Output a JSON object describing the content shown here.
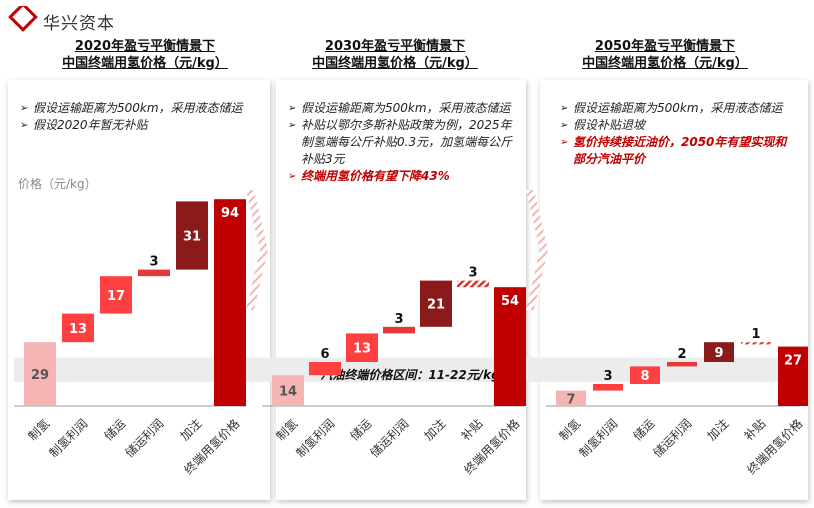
{
  "brand": {
    "name": "华兴资本",
    "color": "#c00000"
  },
  "colors": {
    "accent": "#c00000",
    "dark_red": "#8b1a1a",
    "bright_red": "#ff4040",
    "pink": "#f5b5b5",
    "band": "#ececec"
  },
  "panels": [
    {
      "title_line1": "2020年盈亏平衡情景下",
      "title_line2": "中国终端用氢价格（元/kg）",
      "bullets": [
        {
          "text": "假设运输距离为500km，采用液态储运",
          "highlight": false
        },
        {
          "text": "假设2020年暂无补贴",
          "highlight": false
        }
      ]
    },
    {
      "title_line1": "2030年盈亏平衡情景下",
      "title_line2": "中国终端用氢价格（元/kg）",
      "bullets": [
        {
          "text": "假设运输距离为500km，采用液态储运",
          "highlight": false
        },
        {
          "text": "补贴以鄂尔多斯补贴政策为例，2025年制氢端每公斤补贴0.3元，加氢端每公斤补贴3元",
          "highlight": false
        },
        {
          "text": "终端用氢价格有望下降43%",
          "highlight": true
        }
      ]
    },
    {
      "title_line1": "2050年盈亏平衡情景下",
      "title_line2": "中国终端用氢价格（元/kg）",
      "bullets": [
        {
          "text": "假设运输距离为500km，采用液态储运",
          "highlight": false
        },
        {
          "text": "假设补贴退坡",
          "highlight": false
        },
        {
          "text": "氢价持续接近油价，2050年有望实现和部分汽油平价",
          "highlight": true
        }
      ]
    }
  ],
  "y_axis_label": "价格（元/kg）",
  "band_label": "汽油终端价格区间：11-22元/kg",
  "chart_data": [
    {
      "type": "waterfall",
      "title": "2020年盈亏平衡情景下 中国终端用氢价格（元/kg）",
      "ylabel": "价格（元/kg）",
      "categories": [
        "制氢",
        "制氢利润",
        "储运",
        "储运利润",
        "加注",
        "终端用氢价格"
      ],
      "values": [
        29,
        13,
        17,
        3,
        31,
        94
      ],
      "labels": [
        "29",
        "13",
        "17",
        "3",
        "31",
        "94"
      ],
      "kinds": [
        "base",
        "step",
        "step",
        "step",
        "step",
        "total"
      ],
      "reference_band": {
        "label": "汽油终端价格区间",
        "range": [
          11,
          22
        ]
      }
    },
    {
      "type": "waterfall",
      "title": "2030年盈亏平衡情景下 中国终端用氢价格（元/kg）",
      "ylabel": "价格（元/kg）",
      "categories": [
        "制氢",
        "制氢利润",
        "储运",
        "储运利润",
        "加注",
        "补贴",
        "终端用氢价格"
      ],
      "values": [
        14,
        6,
        13,
        3,
        21,
        -3,
        54
      ],
      "labels": [
        "14",
        "6",
        "13",
        "3",
        "21",
        "3",
        "54"
      ],
      "kinds": [
        "base",
        "step",
        "step",
        "step",
        "step",
        "subsidy",
        "total"
      ],
      "reference_band": {
        "label": "汽油终端价格区间",
        "range": [
          11,
          22
        ]
      }
    },
    {
      "type": "waterfall",
      "title": "2050年盈亏平衡情景下 中国终端用氢价格（元/kg）",
      "ylabel": "价格（元/kg）",
      "categories": [
        "制氢",
        "制氢利润",
        "储运",
        "储运利润",
        "加注",
        "补贴",
        "终端用氢价格"
      ],
      "values": [
        7,
        3,
        8,
        2,
        9,
        -1,
        27
      ],
      "labels": [
        "7",
        "3",
        "8",
        "2",
        "9",
        "1",
        "27"
      ],
      "kinds": [
        "base",
        "step",
        "step",
        "step",
        "step",
        "subsidy",
        "total"
      ],
      "reference_band": {
        "label": "汽油终端价格区间",
        "range": [
          11,
          22
        ]
      }
    }
  ]
}
